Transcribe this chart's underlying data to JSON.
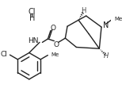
{
  "bg_color": "#ffffff",
  "line_color": "#222222",
  "line_width": 1.0,
  "font_size": 6.5,
  "figsize": [
    1.54,
    1.26
  ],
  "dpi": 100,
  "xlim": [
    0,
    154
  ],
  "ylim": [
    0,
    126
  ]
}
